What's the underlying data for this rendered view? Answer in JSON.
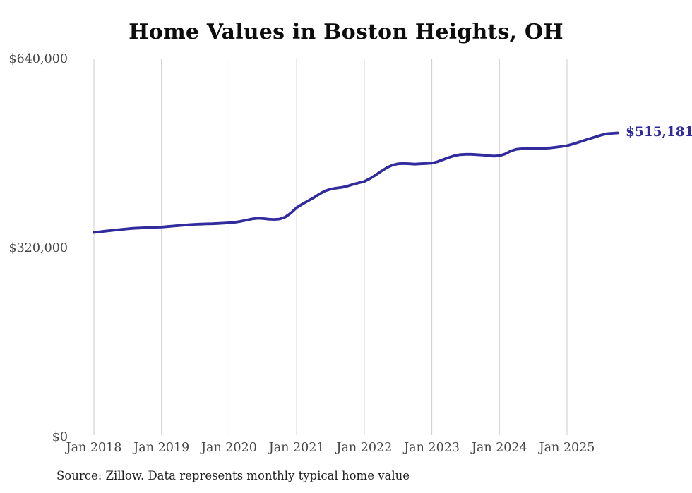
{
  "chart": {
    "title": "Home Values in Boston Heights, OH",
    "end_label": "$515,181",
    "source": "Source: Zillow. Data represents monthly typical home value"
  },
  "chart_data": {
    "type": "line",
    "title": "Home Values in Boston Heights, OH",
    "series_name": "Monthly typical home value",
    "line_color": "#322b9d",
    "grid_color": "#cccccc",
    "grid": "vertical-only",
    "legend": "none",
    "ylim": [
      0,
      640000
    ],
    "y_ticks": [
      {
        "value": 640000,
        "label": "$640,000"
      },
      {
        "value": 320000,
        "label": "$320,000"
      },
      {
        "value": 0,
        "label": "$0"
      }
    ],
    "x_tick_labels": [
      "Jan 2018",
      "Jan 2019",
      "Jan 2020",
      "Jan 2021",
      "Jan 2022",
      "Jan 2023",
      "Jan 2024",
      "Jan 2025"
    ],
    "x_start": "Jan 2018",
    "x_end": "Oct 2025",
    "months_per_tick": 12,
    "last_value": 515181,
    "last_value_label": "$515,181",
    "values_monthly": [
      346900,
      348000,
      349000,
      350000,
      351000,
      352000,
      353000,
      353800,
      354300,
      354800,
      355300,
      355700,
      356000,
      356800,
      357600,
      358400,
      359200,
      360000,
      360600,
      361000,
      361300,
      361600,
      362000,
      362500,
      363100,
      364000,
      365500,
      367500,
      369500,
      370800,
      370300,
      369300,
      368800,
      369500,
      373000,
      380000,
      388800,
      394800,
      400100,
      405500,
      411500,
      416900,
      419900,
      421700,
      422900,
      425200,
      428200,
      430700,
      433100,
      437800,
      443800,
      450400,
      456400,
      460600,
      463000,
      463500,
      463000,
      462400,
      463000,
      463500,
      464100,
      466500,
      470100,
      473700,
      476700,
      478500,
      479100,
      479100,
      478500,
      477900,
      476700,
      476100,
      476700,
      479700,
      484500,
      487500,
      488500,
      489300,
      489300,
      489300,
      489300,
      489900,
      491100,
      492300,
      493700,
      496400,
      499400,
      502400,
      505400,
      508400,
      511400,
      513800,
      514600,
      515181
    ]
  }
}
